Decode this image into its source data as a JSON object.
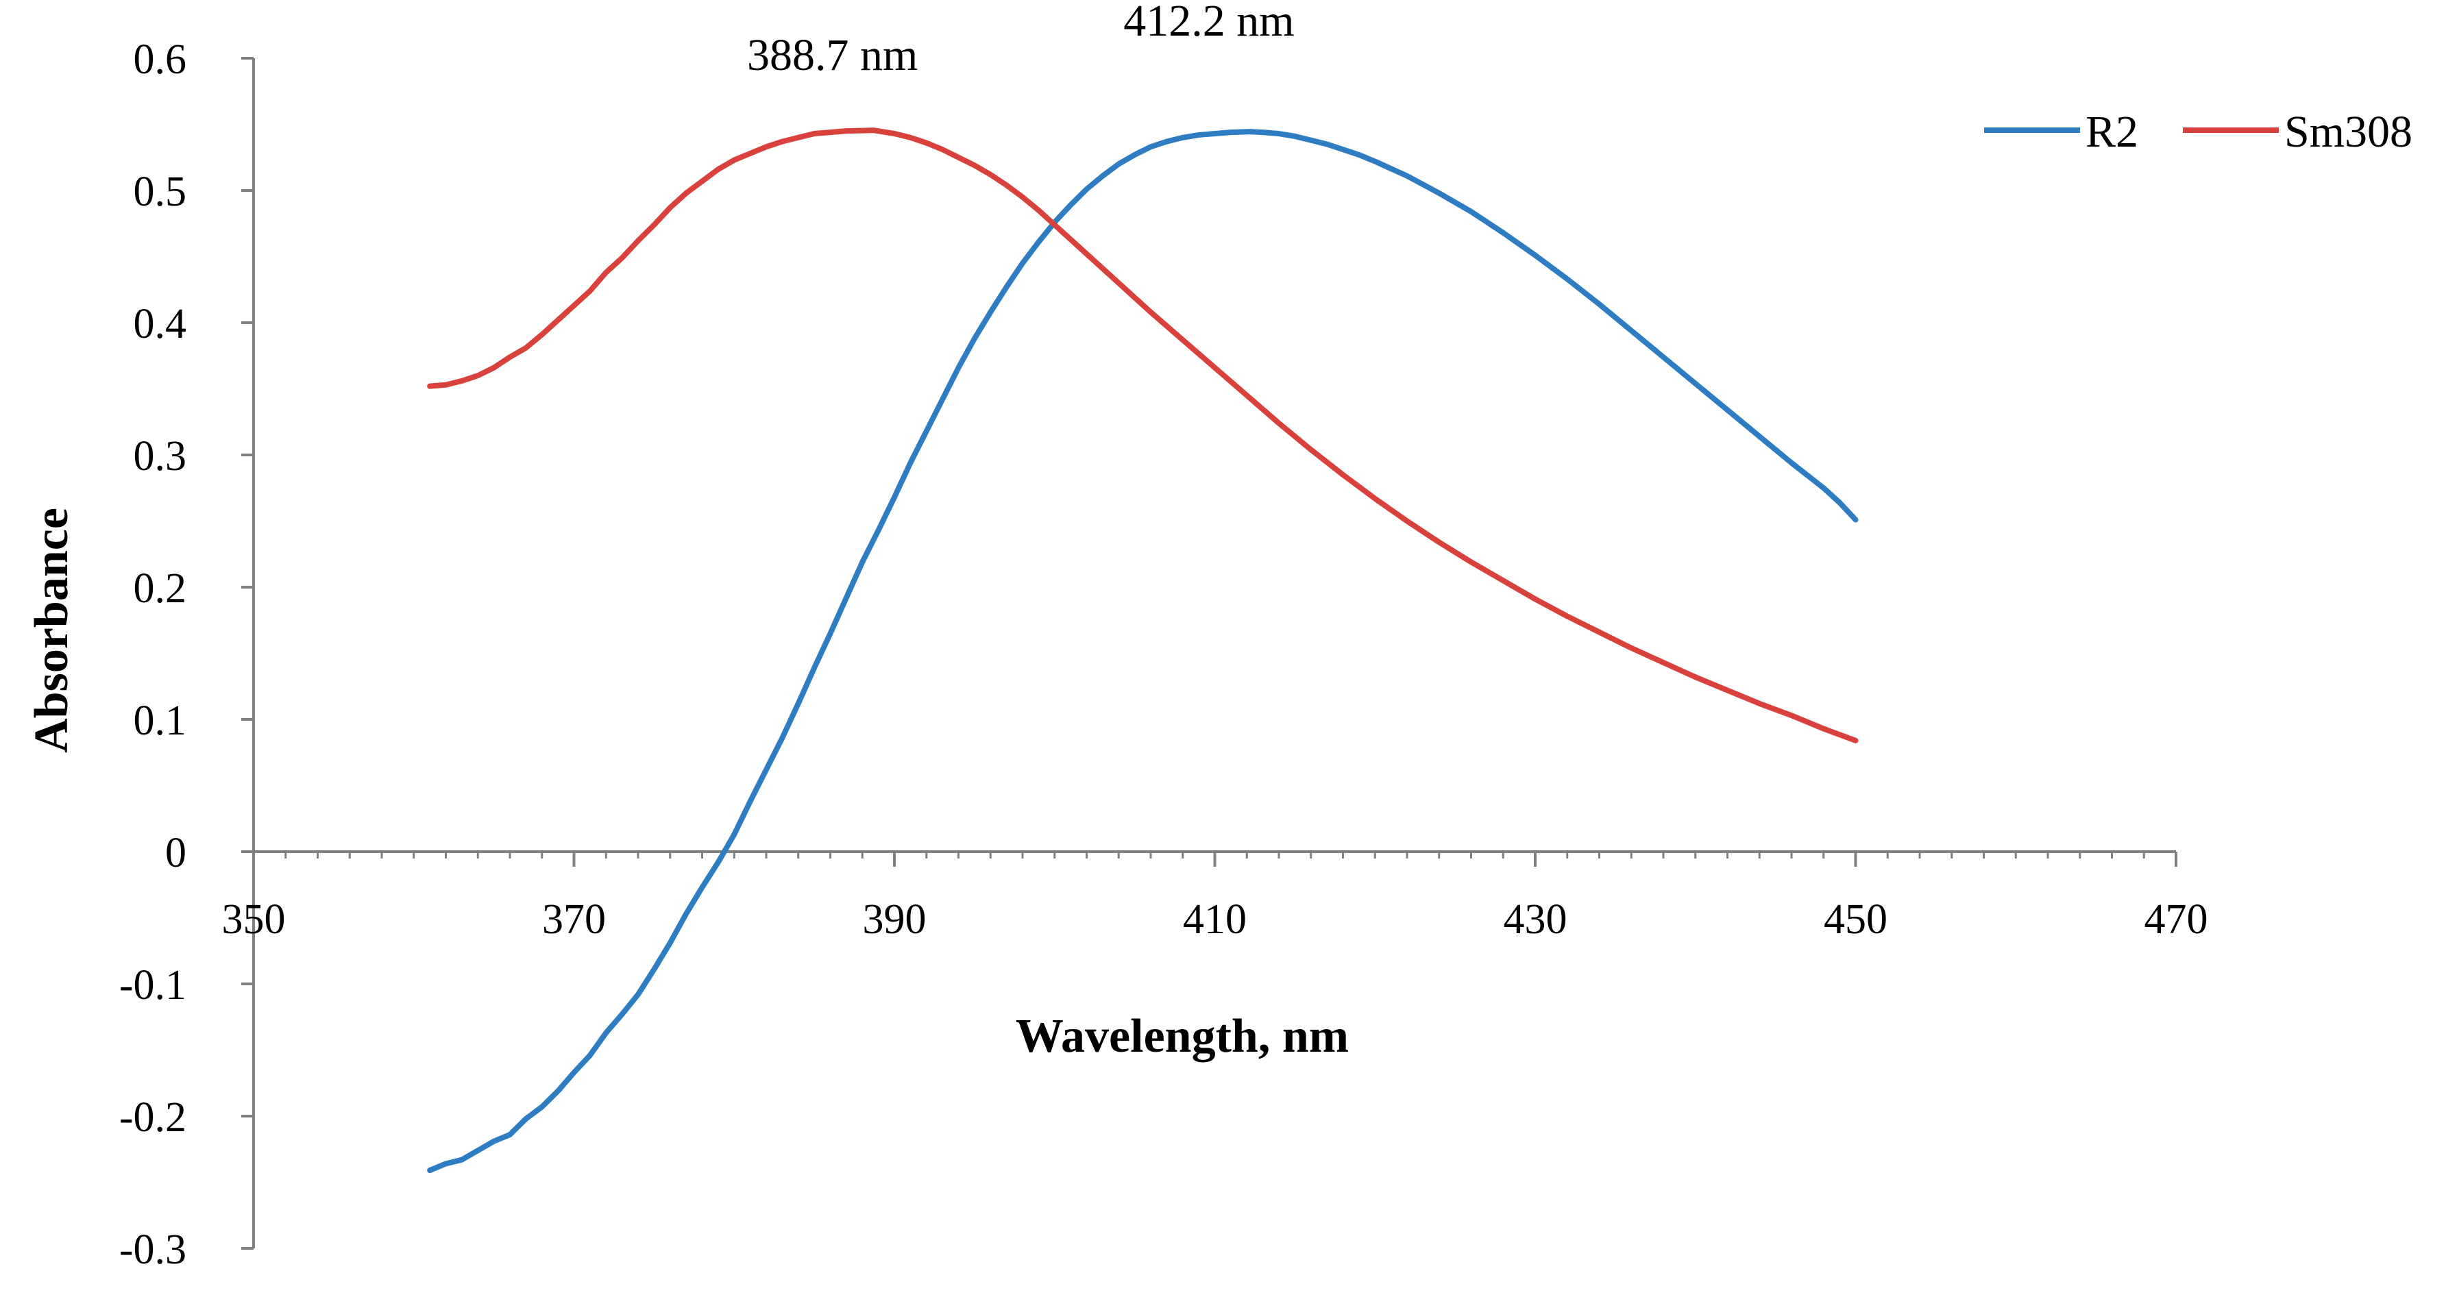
{
  "chart_data": {
    "type": "line",
    "title": "",
    "xlabel": "Wavelength, nm",
    "ylabel": "Absorbance",
    "xlim": [
      350,
      470
    ],
    "ylim": [
      -0.3,
      0.6
    ],
    "x_ticks": [
      350,
      370,
      390,
      410,
      430,
      450,
      470
    ],
    "x_tick_labels": [
      "350",
      "370",
      "390",
      "410",
      "430",
      "450",
      "470"
    ],
    "y_ticks": [
      0.6,
      0.5,
      0.4,
      0.3,
      0.2,
      0.1,
      0,
      -0.1,
      -0.2,
      -0.3
    ],
    "y_tick_labels": [
      "0.6",
      "0.5",
      "0.4",
      "0.3",
      "0.2",
      "0.1",
      "0",
      "-0.1",
      "-0.2",
      "-0.3"
    ],
    "grid": false,
    "legend_position": "top-right",
    "series": [
      {
        "name": "R2",
        "color": "#2e7dc2",
        "points": [
          [
            361,
            -0.241
          ],
          [
            362,
            -0.236
          ],
          [
            363,
            -0.233
          ],
          [
            364,
            -0.226
          ],
          [
            365,
            -0.219
          ],
          [
            366,
            -0.214
          ],
          [
            367,
            -0.202
          ],
          [
            368,
            -0.193
          ],
          [
            369,
            -0.181
          ],
          [
            370,
            -0.167
          ],
          [
            371,
            -0.154
          ],
          [
            372,
            -0.137
          ],
          [
            373,
            -0.123
          ],
          [
            374,
            -0.108
          ],
          [
            375,
            -0.089
          ],
          [
            376,
            -0.069
          ],
          [
            377,
            -0.047
          ],
          [
            378,
            -0.027
          ],
          [
            379,
            -0.008
          ],
          [
            380,
            0.013
          ],
          [
            381,
            0.038
          ],
          [
            382,
            0.062
          ],
          [
            383,
            0.086
          ],
          [
            384,
            0.112
          ],
          [
            385,
            0.139
          ],
          [
            386,
            0.165
          ],
          [
            387,
            0.192
          ],
          [
            388,
            0.219
          ],
          [
            389,
            0.243
          ],
          [
            390,
            0.268
          ],
          [
            391,
            0.294
          ],
          [
            392,
            0.318
          ],
          [
            393,
            0.342
          ],
          [
            394,
            0.366
          ],
          [
            395,
            0.388
          ],
          [
            396,
            0.408
          ],
          [
            397,
            0.427
          ],
          [
            398,
            0.445
          ],
          [
            399,
            0.461
          ],
          [
            400,
            0.476
          ],
          [
            401,
            0.489
          ],
          [
            402,
            0.501
          ],
          [
            403,
            0.511
          ],
          [
            404,
            0.52
          ],
          [
            405,
            0.527
          ],
          [
            406,
            0.533
          ],
          [
            407,
            0.537
          ],
          [
            408,
            0.54
          ],
          [
            409,
            0.542
          ],
          [
            410,
            0.543
          ],
          [
            411,
            0.544
          ],
          [
            412.2,
            0.5445
          ],
          [
            413,
            0.544
          ],
          [
            414,
            0.543
          ],
          [
            415,
            0.541
          ],
          [
            416,
            0.538
          ],
          [
            417,
            0.535
          ],
          [
            418,
            0.531
          ],
          [
            419,
            0.527
          ],
          [
            420,
            0.522
          ],
          [
            422,
            0.511
          ],
          [
            424,
            0.498
          ],
          [
            426,
            0.484
          ],
          [
            428,
            0.468
          ],
          [
            430,
            0.451
          ],
          [
            432,
            0.433
          ],
          [
            434,
            0.414
          ],
          [
            436,
            0.394
          ],
          [
            438,
            0.374
          ],
          [
            440,
            0.354
          ],
          [
            442,
            0.334
          ],
          [
            444,
            0.314
          ],
          [
            446,
            0.294
          ],
          [
            448,
            0.275
          ],
          [
            449,
            0.264
          ],
          [
            450,
            0.251
          ]
        ]
      },
      {
        "name": "Sm308",
        "color": "#d9423c",
        "points": [
          [
            361,
            0.352
          ],
          [
            362,
            0.353
          ],
          [
            363,
            0.356
          ],
          [
            364,
            0.36
          ],
          [
            365,
            0.366
          ],
          [
            366,
            0.374
          ],
          [
            367,
            0.381
          ],
          [
            368,
            0.391
          ],
          [
            369,
            0.402
          ],
          [
            370,
            0.413
          ],
          [
            371,
            0.424
          ],
          [
            372,
            0.438
          ],
          [
            373,
            0.449
          ],
          [
            374,
            0.462
          ],
          [
            375,
            0.474
          ],
          [
            376,
            0.487
          ],
          [
            377,
            0.498
          ],
          [
            378,
            0.507
          ],
          [
            379,
            0.516
          ],
          [
            380,
            0.523
          ],
          [
            381,
            0.528
          ],
          [
            382,
            0.533
          ],
          [
            383,
            0.537
          ],
          [
            384,
            0.54
          ],
          [
            385,
            0.543
          ],
          [
            386,
            0.544
          ],
          [
            387,
            0.545
          ],
          [
            388.7,
            0.5455
          ],
          [
            390,
            0.543
          ],
          [
            391,
            0.54
          ],
          [
            392,
            0.536
          ],
          [
            393,
            0.531
          ],
          [
            394,
            0.525
          ],
          [
            395,
            0.519
          ],
          [
            396,
            0.512
          ],
          [
            397,
            0.504
          ],
          [
            398,
            0.495
          ],
          [
            399,
            0.485
          ],
          [
            400,
            0.474
          ],
          [
            402,
            0.452
          ],
          [
            404,
            0.43
          ],
          [
            406,
            0.408
          ],
          [
            408,
            0.387
          ],
          [
            410,
            0.366
          ],
          [
            412,
            0.345
          ],
          [
            414,
            0.324
          ],
          [
            416,
            0.304
          ],
          [
            418,
            0.285
          ],
          [
            420,
            0.267
          ],
          [
            422,
            0.25
          ],
          [
            424,
            0.234
          ],
          [
            426,
            0.219
          ],
          [
            428,
            0.205
          ],
          [
            430,
            0.191
          ],
          [
            432,
            0.178
          ],
          [
            434,
            0.166
          ],
          [
            436,
            0.154
          ],
          [
            438,
            0.143
          ],
          [
            440,
            0.132
          ],
          [
            442,
            0.122
          ],
          [
            444,
            0.112
          ],
          [
            446,
            0.103
          ],
          [
            448,
            0.093
          ],
          [
            450,
            0.084
          ]
        ]
      }
    ],
    "annotations": [
      {
        "text": "388.7 nm",
        "x": 388.7,
        "y": 0.5455
      },
      {
        "text": "412.2 nm",
        "x": 412.2,
        "y": 0.5445
      }
    ]
  }
}
